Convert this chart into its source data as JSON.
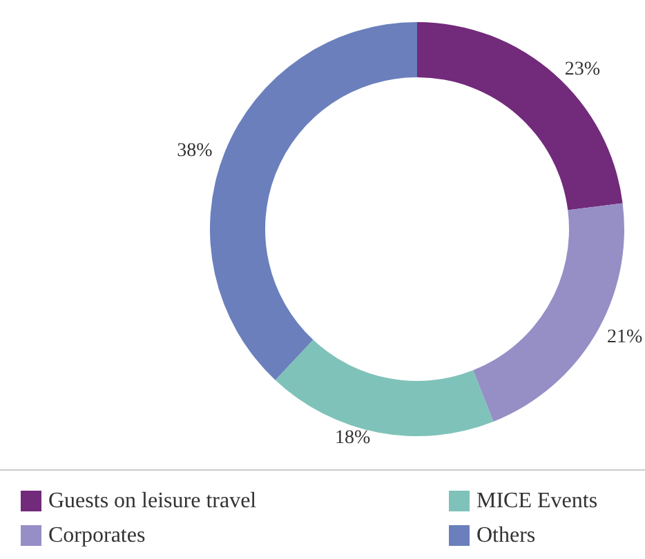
{
  "chart_data": {
    "type": "donut",
    "categories": [
      "Guests on leisure travel",
      "Corporates",
      "MICE Events",
      "Others"
    ],
    "values": [
      23,
      21,
      18,
      38
    ],
    "value_labels": [
      "23%",
      "21%",
      "18%",
      "38%"
    ],
    "colors": [
      "#722a7b",
      "#968fc6",
      "#7fc2b9",
      "#6a7fbc"
    ],
    "legend": "bottom"
  }
}
